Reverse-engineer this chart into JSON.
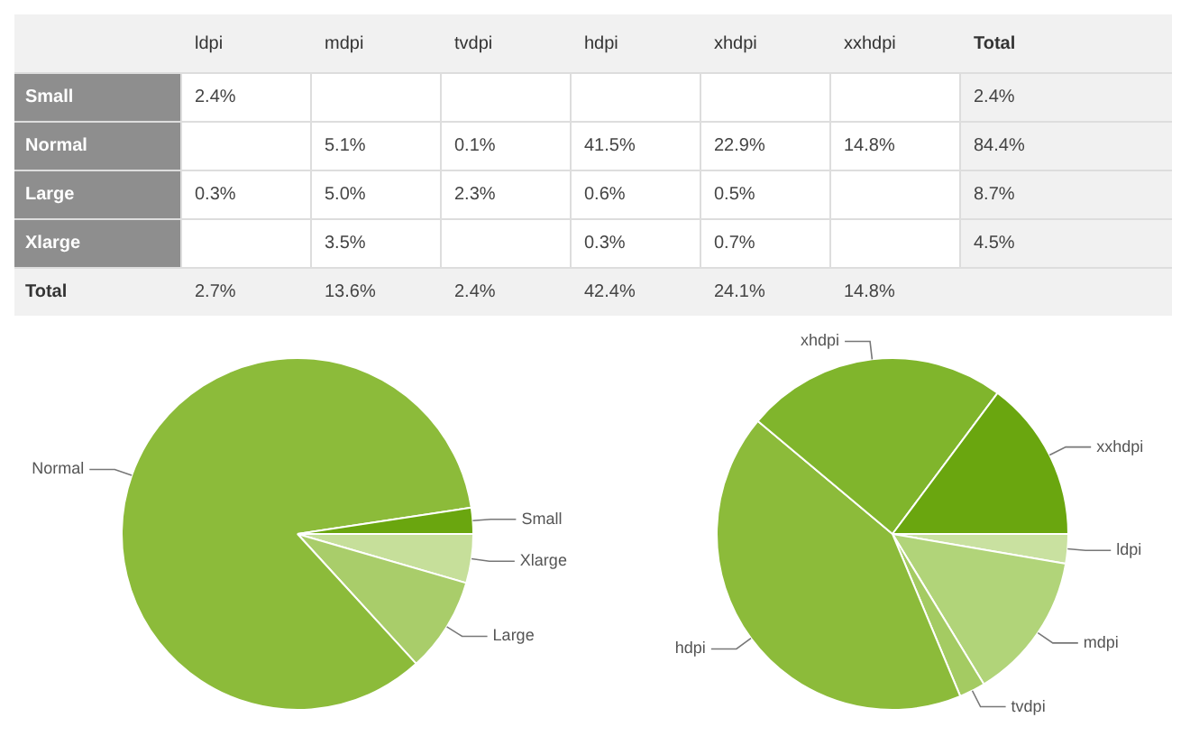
{
  "chart_data": [
    {
      "type": "heatmap",
      "categories": [
        "ldpi",
        "mdpi",
        "tvdpi",
        "hdpi",
        "xhdpi",
        "xxhdpi",
        "Total"
      ],
      "y_categories": [
        "Small",
        "Normal",
        "Large",
        "Xlarge",
        "Total"
      ],
      "cells": [
        [
          2.4,
          null,
          null,
          null,
          null,
          null,
          2.4
        ],
        [
          null,
          5.1,
          0.1,
          41.5,
          22.9,
          14.8,
          84.4
        ],
        [
          0.3,
          5.0,
          2.3,
          0.6,
          0.5,
          null,
          8.7
        ],
        [
          null,
          3.5,
          null,
          0.3,
          0.7,
          null,
          4.5
        ],
        [
          2.7,
          13.6,
          2.4,
          42.4,
          24.1,
          14.8,
          null
        ]
      ],
      "cell_labels": [
        [
          "2.4%",
          null,
          null,
          null,
          null,
          null,
          "2.4%"
        ],
        [
          null,
          "5.1%",
          "0.1%",
          "41.5%",
          "22.9%",
          "14.8%",
          "84.4%"
        ],
        [
          "0.3%",
          "5.0%",
          "2.3%",
          "0.6%",
          "0.5%",
          null,
          "8.7%"
        ],
        [
          null,
          "3.5%",
          null,
          "0.3%",
          "0.7%",
          null,
          "4.5%"
        ],
        [
          "2.7%",
          "13.6%",
          "2.4%",
          "42.4%",
          "24.1%",
          "14.8%",
          null
        ]
      ]
    },
    {
      "type": "pie",
      "categories": [
        "Xlarge",
        "Large",
        "Normal",
        "Small"
      ],
      "values": [
        4.5,
        8.7,
        84.4,
        2.4
      ],
      "colors": [
        "#c6df9a",
        "#a9cd6a",
        "#8cbb3a",
        "#6aa60f"
      ]
    },
    {
      "type": "pie",
      "categories": [
        "ldpi",
        "mdpi",
        "tvdpi",
        "hdpi",
        "xhdpi",
        "xxhdpi"
      ],
      "values": [
        2.7,
        13.6,
        2.4,
        42.4,
        24.1,
        14.8
      ],
      "colors": [
        "#c9e1a0",
        "#b1d479",
        "#a4cb62",
        "#8cbb3a",
        "#80b52c",
        "#6aa60f"
      ]
    }
  ]
}
